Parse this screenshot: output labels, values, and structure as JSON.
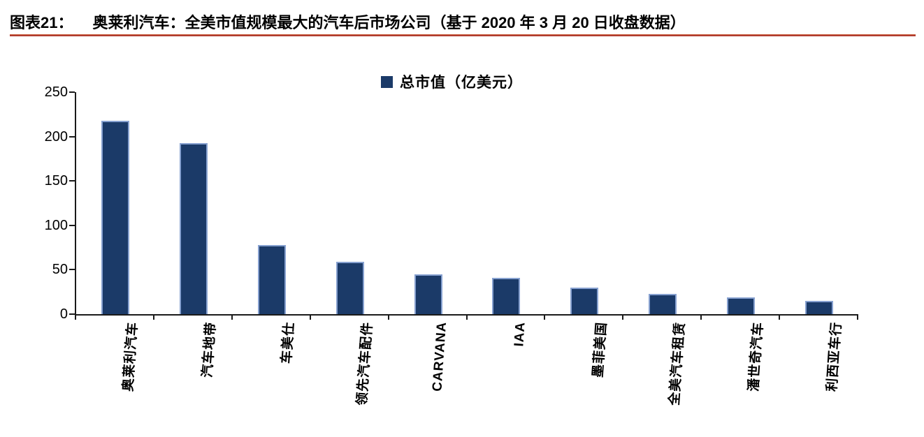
{
  "figure": {
    "label": "图表21：",
    "title": "奥莱利汽车：全美市值规模最大的汽车后市场公司（基于 2020 年 3 月 20 日收盘数据）"
  },
  "colors": {
    "bar_fill": "#1b3a68",
    "bar_border": "#87a1d0",
    "rule_red": "#b03a2e",
    "axis": "#1a1a1a"
  },
  "chart_data": {
    "type": "bar",
    "legend": "总市值（亿美元）",
    "legend_position": "top",
    "categories": [
      "奥莱利汽车",
      "汽车地带",
      "车美仕",
      "领先汽车配件",
      "CARVANA",
      "IAA",
      "墨菲美国",
      "全美汽车租赁",
      "潘世奇汽车",
      "利西亚车行"
    ],
    "values": [
      218,
      193,
      78,
      59,
      45,
      41,
      30,
      23,
      19,
      15
    ],
    "title": "",
    "xlabel": "",
    "ylabel": "",
    "ylim": [
      0,
      250
    ],
    "yticks": [
      0,
      50,
      100,
      150,
      200,
      250
    ],
    "grid": false
  }
}
